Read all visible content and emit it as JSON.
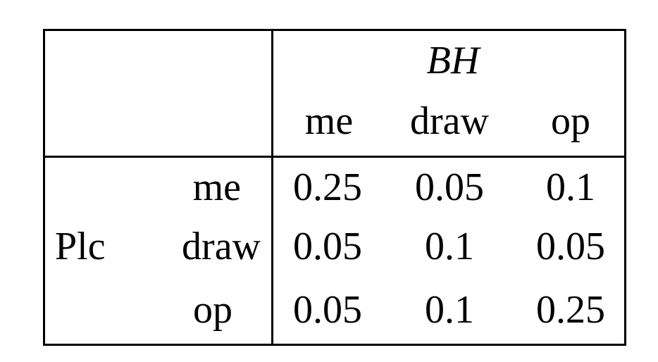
{
  "table": {
    "col_group_label": "BH",
    "row_group_label": "Plc",
    "col_headers": [
      "me",
      "draw",
      "op"
    ],
    "row_headers": [
      "me",
      "draw",
      "op"
    ],
    "rows": [
      [
        "0.25",
        "0.05",
        "0.1"
      ],
      [
        "0.05",
        "0.1",
        "0.05"
      ],
      [
        "0.05",
        "0.1",
        "0.25"
      ]
    ]
  },
  "chart_data": {
    "type": "table",
    "title": "",
    "row_group_label": "Plc",
    "col_group_label": "BH",
    "categories": [
      "me",
      "draw",
      "op"
    ],
    "series": [
      {
        "name": "me",
        "values": [
          0.25,
          0.05,
          0.1
        ]
      },
      {
        "name": "draw",
        "values": [
          0.05,
          0.1,
          0.05
        ]
      },
      {
        "name": "op",
        "values": [
          0.05,
          0.1,
          0.25
        ]
      }
    ]
  }
}
